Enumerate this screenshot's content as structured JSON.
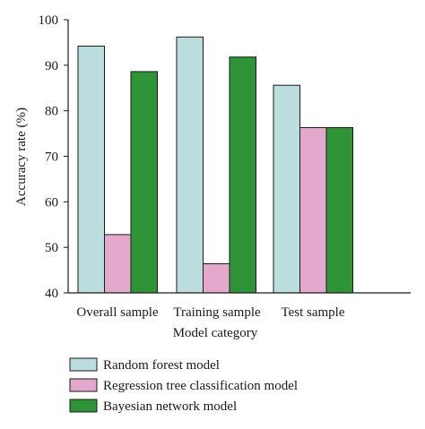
{
  "chart_data": {
    "type": "bar",
    "categories": [
      "Overall sample",
      "Training sample",
      "Test sample"
    ],
    "series": [
      {
        "name": "Random forest model",
        "color": "#bcdddd",
        "values": [
          94.2,
          96.2,
          85.6
        ]
      },
      {
        "name": "Regression tree classification model",
        "color": "#e4a8cc",
        "values": [
          52.8,
          46.4,
          76.3
        ]
      },
      {
        "name": "Bayesian network model",
        "color": "#2f9437",
        "values": [
          88.6,
          91.8,
          76.3
        ]
      }
    ],
    "title": "",
    "xlabel": "Model category",
    "ylabel": "Accuracy rate (%)",
    "ylim": [
      40,
      100
    ],
    "yticks": [
      "40",
      "50",
      "60",
      "70",
      "80",
      "90",
      "100"
    ],
    "grid": false,
    "legend_position": "bottom"
  }
}
